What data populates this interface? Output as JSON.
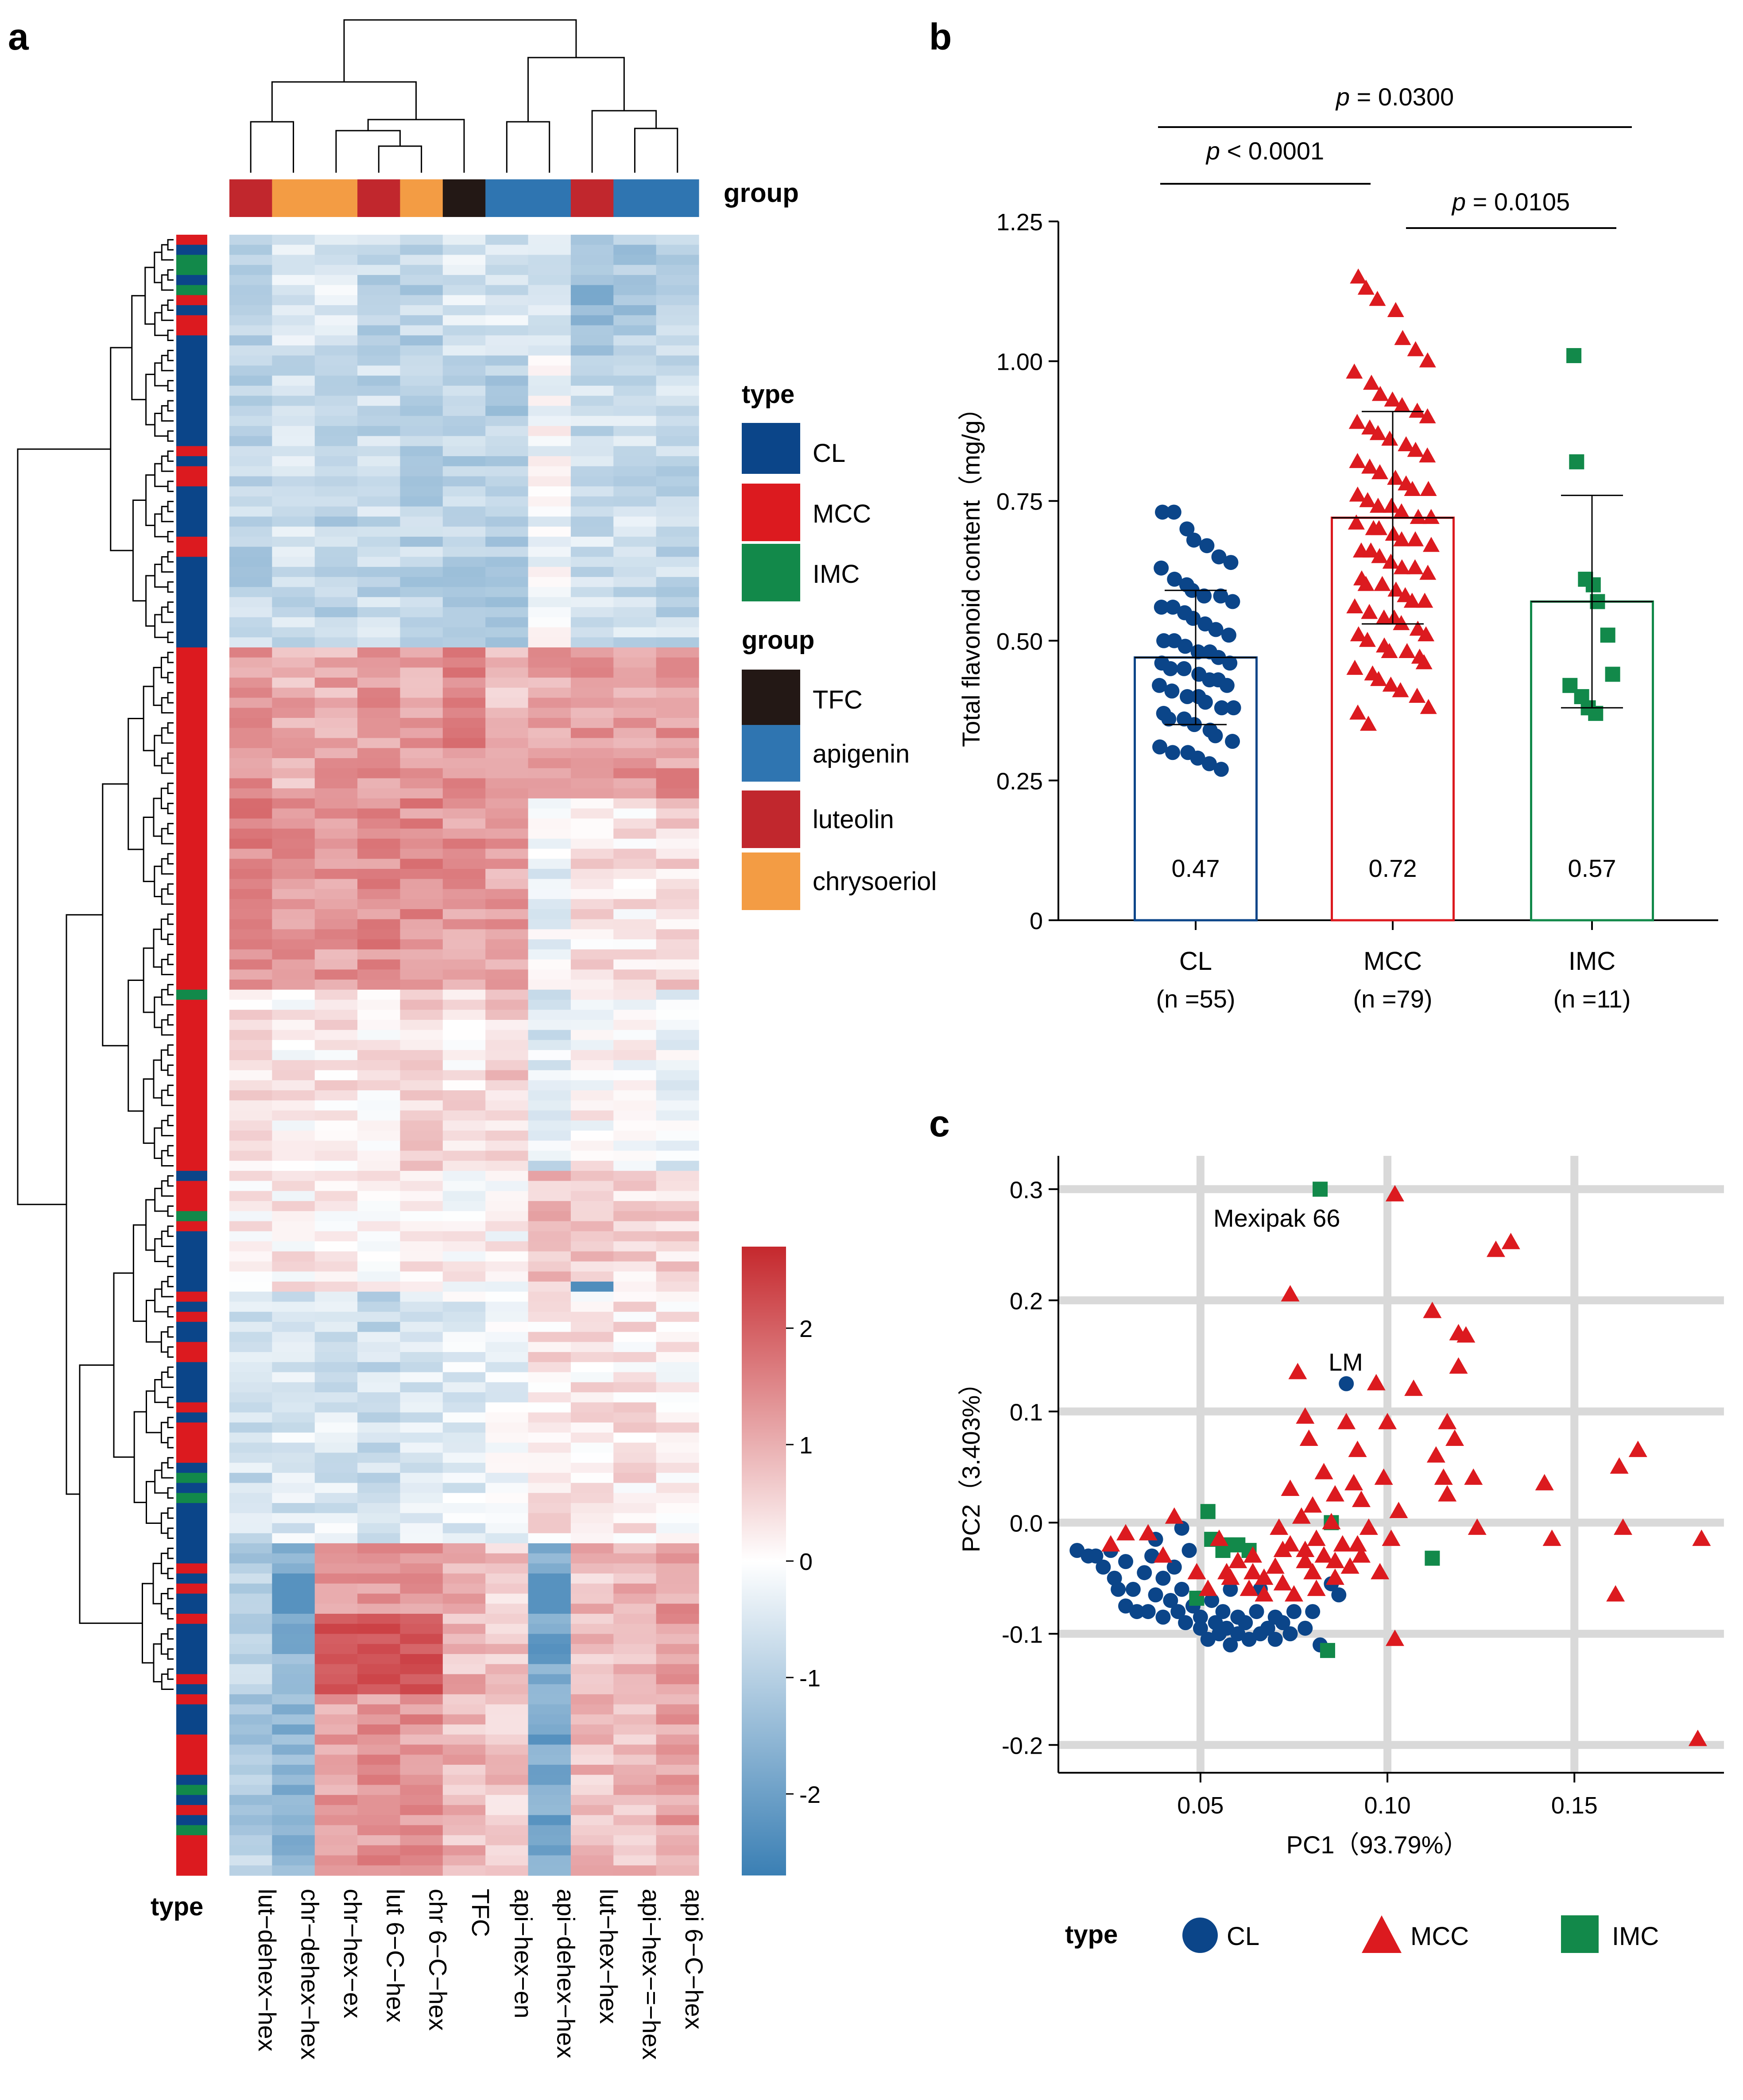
{
  "panels": {
    "a": "a",
    "b": "b",
    "c": "c"
  },
  "colors": {
    "CL": "#0b4589",
    "MCC": "#dc1a1f",
    "IMC": "#12894a",
    "TFC": "#231815",
    "apigenin": "#2f75b1",
    "luteolin": "#c1272d",
    "chrysoeriol": "#f39c44",
    "heat_low": "#3a7fb4",
    "heat_mid": "#ffffff",
    "heat_high": "#c5282d",
    "grid": "#d9d9d9"
  },
  "heatmap": {
    "columns": [
      "lut−dehex−hex",
      "chr−dehex−hex",
      "chr−hex−ex",
      "lut 6−C−hex",
      "chr 6−C−hex",
      "TFC",
      "api−hex−en",
      "api−dehex−hex",
      "lut−hex−hex",
      "api−hex−=−hex",
      "api 6−C−hex"
    ],
    "column_groups": [
      "luteolin",
      "chrysoeriol",
      "chrysoeriol",
      "luteolin",
      "chrysoeriol",
      "TFC",
      "apigenin",
      "apigenin",
      "luteolin",
      "apigenin",
      "apigenin"
    ],
    "group_label": "group",
    "row_type_label": "type",
    "legend_type_title": "type",
    "legend_types": [
      "CL",
      "MCC",
      "IMC"
    ],
    "legend_group_title": "group",
    "legend_groups": [
      "TFC",
      "apigenin",
      "luteolin",
      "chrysoeriol"
    ],
    "colorbar_ticks": [
      "2",
      "1",
      "0",
      "-1",
      "-2"
    ],
    "colorbar_range": [
      -2.7,
      2.7
    ],
    "row_types": "MCC,CL,IMC,IMC,CL,IMC,MCC,CL,MCC,MCC,CL,CL,CL,CL,CL,CL,CL,CL,CL,CL,CL,MCC,CL,MCC,MCC,CL,CL,CL,CL,CL,MCC,MCC,CL,CL,CL,CL,CL,CL,CL,CL,CL,MCC,MCC,MCC,MCC,MCC,MCC,MCC,MCC,MCC,MCC,MCC,MCC,MCC,MCC,MCC,MCC,MCC,MCC,MCC,MCC,MCC,MCC,MCC,MCC,MCC,MCC,MCC,MCC,MCC,MCC,MCC,MCC,MCC,MCC,IMC,MCC,MCC,MCC,MCC,MCC,MCC,MCC,MCC,MCC,MCC,MCC,MCC,MCC,MCC,MCC,MCC,MCC,CL,MCC,MCC,MCC,IMC,MCC,CL,CL,CL,CL,CL,CL,MCC,CL,MCC,CL,CL,MCC,MCC,CL,CL,CL,CL,MCC,CL,MCC,MCC,MCC,MCC,CL,IMC,CL,IMC,CL,CL,CL,CL,CL,CL,MCC,CL,MCC,CL,CL,MCC,CL,CL,CL,CL,CL,MCC,CL,MCC,CL,CL,CL,MCC,MCC,MCC,MCC,CL,IMC,CL,MCC,CL,IMC,MCC,MCC,MCC,MCC"
  },
  "chart_data": [
    {
      "type": "heatmap",
      "panel": "a",
      "n_rows": 145,
      "n_columns": 11,
      "value_range": [
        -2.7,
        2.7
      ],
      "block_profiles": [
        {
          "rows": "1-12",
          "type": "mixed",
          "values": [
            -1.0,
            -0.5,
            -0.5,
            -0.9,
            -0.9,
            -0.5,
            -0.6,
            -0.7,
            -1.4,
            -1.1,
            -0.9
          ]
        },
        {
          "rows": "13-41",
          "type": "mostly CL",
          "values": [
            -0.9,
            -0.7,
            -0.9,
            -0.8,
            -0.9,
            -1.0,
            -1.0,
            -0.1,
            -0.7,
            -0.7,
            -0.8
          ]
        },
        {
          "rows": "42-56",
          "type": "MCC",
          "values": [
            1.3,
            1.0,
            1.1,
            1.3,
            1.2,
            1.4,
            0.9,
            1.1,
            1.3,
            1.2,
            1.3
          ]
        },
        {
          "rows": "57-75",
          "type": "MCC",
          "values": [
            1.5,
            1.4,
            1.3,
            1.5,
            1.4,
            1.3,
            1.2,
            -0.2,
            0.4,
            0.3,
            0.5
          ]
        },
        {
          "rows": "76-93",
          "type": "MCC",
          "values": [
            0.3,
            0.2,
            0.3,
            0.3,
            0.5,
            0.3,
            0.6,
            -0.5,
            0.1,
            0.0,
            -0.3
          ]
        },
        {
          "rows": "94-105",
          "type": "mixed",
          "values": [
            0.2,
            0.2,
            0.1,
            0.1,
            0.2,
            0.1,
            0.1,
            0.8,
            0.7,
            0.5,
            0.5
          ]
        },
        {
          "rows": "106-130",
          "type": "mostly CL",
          "values": [
            -0.7,
            -0.5,
            -0.5,
            -0.7,
            -0.4,
            -0.3,
            -0.3,
            0.4,
            0.3,
            0.3,
            0.2
          ]
        },
        {
          "rows": "131-145",
          "type": "mixed",
          "values": [
            -1.0,
            -1.6,
            1.2,
            1.3,
            1.3,
            0.9,
            0.7,
            -1.9,
            0.8,
            0.9,
            1.2
          ]
        }
      ]
    },
    {
      "type": "scatter",
      "panel": "b",
      "subtype": "bar+jitter (mean ± SD)",
      "categories": [
        "CL",
        "MCC",
        "IMC"
      ],
      "category_labels": [
        "CL",
        "MCC",
        "IMC"
      ],
      "n_labels": [
        "(n =55)",
        "(n =79)",
        "(n =11)"
      ],
      "means": [
        0.47,
        0.72,
        0.57
      ],
      "mean_labels": [
        "0.47",
        "0.72",
        "0.57"
      ],
      "sd": [
        0.12,
        0.19,
        0.19
      ],
      "ylabel": "Total flavonoid content（mg/g）",
      "ylim": [
        0,
        1.25
      ],
      "yticks": [
        "0",
        "0.25",
        "0.50",
        "0.75",
        "1.00",
        "1.25"
      ],
      "significance": [
        {
          "pair": [
            "CL",
            "MCC"
          ],
          "label_prefix": "p",
          "label_rest": " < 0.0001"
        },
        {
          "pair": [
            "MCC",
            "IMC"
          ],
          "label_prefix": "p",
          "label_rest": " = 0.0105"
        },
        {
          "pair": [
            "CL",
            "IMC"
          ],
          "label_prefix": "p",
          "label_rest": " = 0.0300"
        }
      ],
      "points": {
        "CL": [
          0.73,
          0.73,
          0.7,
          0.68,
          0.67,
          0.65,
          0.64,
          0.63,
          0.61,
          0.6,
          0.59,
          0.58,
          0.58,
          0.57,
          0.56,
          0.56,
          0.55,
          0.54,
          0.53,
          0.52,
          0.51,
          0.5,
          0.5,
          0.49,
          0.48,
          0.48,
          0.47,
          0.46,
          0.46,
          0.45,
          0.45,
          0.44,
          0.43,
          0.43,
          0.42,
          0.42,
          0.41,
          0.4,
          0.4,
          0.39,
          0.38,
          0.38,
          0.37,
          0.36,
          0.36,
          0.35,
          0.34,
          0.33,
          0.32,
          0.31,
          0.3,
          0.3,
          0.29,
          0.28,
          0.27
        ],
        "MCC": [
          1.15,
          1.13,
          1.11,
          1.09,
          1.04,
          1.02,
          1.0,
          0.98,
          0.96,
          0.94,
          0.93,
          0.92,
          0.91,
          0.9,
          0.89,
          0.88,
          0.87,
          0.86,
          0.85,
          0.84,
          0.83,
          0.82,
          0.81,
          0.8,
          0.79,
          0.78,
          0.77,
          0.77,
          0.76,
          0.75,
          0.74,
          0.74,
          0.73,
          0.72,
          0.72,
          0.71,
          0.7,
          0.7,
          0.69,
          0.68,
          0.68,
          0.67,
          0.66,
          0.66,
          0.65,
          0.64,
          0.63,
          0.63,
          0.62,
          0.61,
          0.6,
          0.6,
          0.59,
          0.58,
          0.57,
          0.57,
          0.56,
          0.55,
          0.54,
          0.54,
          0.53,
          0.52,
          0.51,
          0.51,
          0.5,
          0.49,
          0.48,
          0.48,
          0.47,
          0.46,
          0.45,
          0.44,
          0.43,
          0.42,
          0.41,
          0.4,
          0.38,
          0.37,
          0.35
        ],
        "IMC": [
          1.01,
          0.82,
          0.61,
          0.6,
          0.57,
          0.51,
          0.44,
          0.42,
          0.4,
          0.38,
          0.37
        ]
      }
    },
    {
      "type": "scatter",
      "panel": "c",
      "xlabel": "PC1（93.79%）",
      "ylabel": "PC2（3.403%）",
      "xlim": [
        0.012,
        0.19
      ],
      "ylim": [
        -0.225,
        0.33
      ],
      "xticks": [
        "0.05",
        "0.10",
        "0.15"
      ],
      "yticks": [
        "0.3",
        "0.2",
        "0.1",
        "0.0",
        "-0.1",
        "-0.2"
      ],
      "grid": true,
      "annotations": [
        "Mexipak 66",
        "LM"
      ],
      "legend_title": "type",
      "legend": [
        "CL",
        "MCC",
        "IMC"
      ],
      "series": [
        {
          "name": "CL",
          "points": [
            [
              0.089,
              0.125
            ],
            [
              0.017,
              -0.025
            ],
            [
              0.02,
              -0.03
            ],
            [
              0.022,
              -0.03
            ],
            [
              0.024,
              -0.04
            ],
            [
              0.026,
              -0.025
            ],
            [
              0.027,
              -0.05
            ],
            [
              0.028,
              -0.06
            ],
            [
              0.03,
              -0.035
            ],
            [
              0.03,
              -0.075
            ],
            [
              0.032,
              -0.06
            ],
            [
              0.033,
              -0.08
            ],
            [
              0.035,
              -0.045
            ],
            [
              0.036,
              -0.08
            ],
            [
              0.037,
              -0.03
            ],
            [
              0.038,
              -0.065
            ],
            [
              0.04,
              -0.05
            ],
            [
              0.04,
              -0.085
            ],
            [
              0.042,
              -0.07
            ],
            [
              0.043,
              -0.04
            ],
            [
              0.044,
              -0.08
            ],
            [
              0.045,
              -0.06
            ],
            [
              0.046,
              -0.09
            ],
            [
              0.047,
              -0.025
            ],
            [
              0.048,
              -0.075
            ],
            [
              0.05,
              -0.085
            ],
            [
              0.05,
              -0.095
            ],
            [
              0.052,
              -0.105
            ],
            [
              0.053,
              -0.07
            ],
            [
              0.054,
              -0.09
            ],
            [
              0.055,
              -0.1
            ],
            [
              0.056,
              -0.08
            ],
            [
              0.057,
              -0.095
            ],
            [
              0.058,
              -0.11
            ],
            [
              0.06,
              -0.085
            ],
            [
              0.06,
              -0.1
            ],
            [
              0.062,
              -0.09
            ],
            [
              0.063,
              -0.105
            ],
            [
              0.065,
              -0.08
            ],
            [
              0.066,
              -0.1
            ],
            [
              0.068,
              -0.095
            ],
            [
              0.07,
              -0.085
            ],
            [
              0.07,
              -0.105
            ],
            [
              0.072,
              -0.09
            ],
            [
              0.074,
              -0.1
            ],
            [
              0.075,
              -0.08
            ],
            [
              0.078,
              -0.095
            ],
            [
              0.08,
              -0.08
            ],
            [
              0.082,
              -0.11
            ],
            [
              0.085,
              -0.055
            ],
            [
              0.087,
              -0.065
            ],
            [
              0.038,
              -0.015
            ],
            [
              0.045,
              -0.005
            ],
            [
              0.058,
              -0.06
            ],
            [
              0.066,
              -0.06
            ]
          ]
        },
        {
          "name": "MCC",
          "points": [
            [
              0.102,
              0.295
            ],
            [
              0.074,
              0.205
            ],
            [
              0.129,
              0.245
            ],
            [
              0.133,
              0.252
            ],
            [
              0.112,
              0.19
            ],
            [
              0.119,
              0.17
            ],
            [
              0.121,
              0.168
            ],
            [
              0.076,
              0.135
            ],
            [
              0.097,
              0.125
            ],
            [
              0.119,
              0.14
            ],
            [
              0.107,
              0.12
            ],
            [
              0.078,
              0.095
            ],
            [
              0.089,
              0.09
            ],
            [
              0.1,
              0.09
            ],
            [
              0.116,
              0.09
            ],
            [
              0.118,
              0.075
            ],
            [
              0.079,
              0.075
            ],
            [
              0.092,
              0.065
            ],
            [
              0.113,
              0.06
            ],
            [
              0.167,
              0.065
            ],
            [
              0.162,
              0.05
            ],
            [
              0.115,
              0.04
            ],
            [
              0.123,
              0.04
            ],
            [
              0.142,
              0.035
            ],
            [
              0.074,
              0.03
            ],
            [
              0.083,
              0.045
            ],
            [
              0.091,
              0.035
            ],
            [
              0.099,
              0.04
            ],
            [
              0.116,
              0.025
            ],
            [
              0.086,
              0.025
            ],
            [
              0.093,
              0.02
            ],
            [
              0.103,
              0.01
            ],
            [
              0.08,
              0.015
            ],
            [
              0.077,
              0.005
            ],
            [
              0.071,
              -0.005
            ],
            [
              0.085,
              0.0
            ],
            [
              0.095,
              -0.005
            ],
            [
              0.074,
              -0.02
            ],
            [
              0.081,
              -0.015
            ],
            [
              0.092,
              -0.02
            ],
            [
              0.101,
              -0.015
            ],
            [
              0.124,
              -0.005
            ],
            [
              0.144,
              -0.015
            ],
            [
              0.163,
              -0.005
            ],
            [
              0.184,
              -0.015
            ],
            [
              0.043,
              0.005
            ],
            [
              0.03,
              -0.01
            ],
            [
              0.026,
              -0.02
            ],
            [
              0.036,
              -0.01
            ],
            [
              0.04,
              -0.03
            ],
            [
              0.055,
              -0.015
            ],
            [
              0.06,
              -0.035
            ],
            [
              0.064,
              -0.03
            ],
            [
              0.067,
              -0.05
            ],
            [
              0.07,
              -0.04
            ],
            [
              0.072,
              -0.055
            ],
            [
              0.078,
              -0.035
            ],
            [
              0.08,
              -0.045
            ],
            [
              0.083,
              -0.03
            ],
            [
              0.086,
              -0.05
            ],
            [
              0.09,
              -0.04
            ],
            [
              0.093,
              -0.03
            ],
            [
              0.058,
              -0.05
            ],
            [
              0.063,
              -0.06
            ],
            [
              0.067,
              -0.065
            ],
            [
              0.075,
              -0.065
            ],
            [
              0.049,
              -0.045
            ],
            [
              0.052,
              -0.06
            ],
            [
              0.102,
              -0.105
            ],
            [
              0.161,
              -0.065
            ],
            [
              0.183,
              -0.195
            ],
            [
              0.086,
              -0.035
            ],
            [
              0.072,
              -0.025
            ],
            [
              0.064,
              -0.045
            ],
            [
              0.081,
              -0.06
            ],
            [
              0.078,
              -0.025
            ],
            [
              0.088,
              -0.02
            ],
            [
              0.098,
              -0.045
            ],
            [
              0.057,
              -0.045
            ]
          ]
        },
        {
          "name": "IMC",
          "points": [
            [
              0.082,
              0.3
            ],
            [
              0.052,
              0.01
            ],
            [
              0.057,
              -0.02
            ],
            [
              0.06,
              -0.02
            ],
            [
              0.056,
              -0.025
            ],
            [
              0.053,
              -0.015
            ],
            [
              0.063,
              -0.025
            ],
            [
              0.085,
              0.0
            ],
            [
              0.112,
              -0.032
            ],
            [
              0.049,
              -0.068
            ],
            [
              0.084,
              -0.115
            ]
          ]
        }
      ]
    }
  ]
}
